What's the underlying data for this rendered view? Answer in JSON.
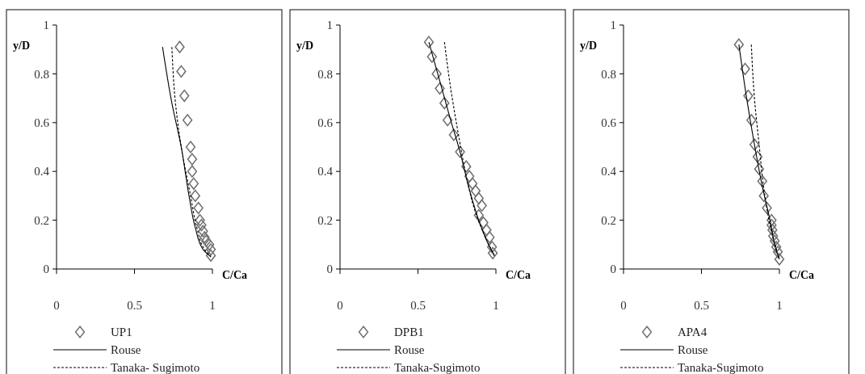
{
  "chart_data": [
    {
      "type": "scatter",
      "xlabel": "C/Ca",
      "ylabel": "y/D",
      "xlim": [
        0,
        1
      ],
      "ylim": [
        0,
        1
      ],
      "xticks": [
        0,
        0.5,
        1
      ],
      "yticks": [
        0,
        0.2,
        0.4,
        0.6,
        0.8,
        1
      ],
      "grid": false,
      "legend": "bottom",
      "series": [
        {
          "name": "UP1",
          "marker": "diamond",
          "color": "#707070",
          "x": [
            0.79,
            0.8,
            0.82,
            0.84,
            0.86,
            0.87,
            0.87,
            0.88,
            0.89,
            0.91,
            0.92,
            0.93,
            0.94,
            0.95,
            0.96,
            0.98,
            0.99,
            0.99
          ],
          "values": [
            0.91,
            0.81,
            0.71,
            0.61,
            0.5,
            0.45,
            0.4,
            0.35,
            0.3,
            0.25,
            0.2,
            0.18,
            0.155,
            0.13,
            0.115,
            0.1,
            0.08,
            0.055
          ]
        },
        {
          "name": "Rouse",
          "type": "line",
          "line_style": "solid",
          "color": "#000000",
          "x": [
            0.68,
            0.74,
            0.8,
            0.85,
            0.89,
            0.94,
            0.99
          ],
          "values": [
            0.91,
            0.68,
            0.5,
            0.3,
            0.17,
            0.08,
            0.05
          ]
        },
        {
          "name": "Tanaka- Sugimoto",
          "type": "line",
          "line_style": "dashed",
          "color": "#000000",
          "x": [
            0.74,
            0.76,
            0.8,
            0.86,
            0.9,
            0.95,
            0.99
          ],
          "values": [
            0.91,
            0.7,
            0.5,
            0.3,
            0.17,
            0.08,
            0.05
          ]
        }
      ]
    },
    {
      "type": "scatter",
      "xlabel": "C/Ca",
      "ylabel": "y/D",
      "xlim": [
        0,
        1
      ],
      "ylim": [
        0,
        1
      ],
      "xticks": [
        0,
        0.5,
        1
      ],
      "yticks": [
        0,
        0.2,
        0.4,
        0.6,
        0.8,
        1
      ],
      "grid": false,
      "legend": "bottom",
      "series": [
        {
          "name": "DPB1",
          "marker": "diamond",
          "color": "#707070",
          "x": [
            0.57,
            0.59,
            0.62,
            0.64,
            0.67,
            0.69,
            0.73,
            0.77,
            0.81,
            0.83,
            0.85,
            0.87,
            0.89,
            0.91,
            0.89,
            0.92,
            0.94,
            0.96,
            0.975,
            0.98
          ],
          "values": [
            0.93,
            0.87,
            0.8,
            0.74,
            0.68,
            0.61,
            0.55,
            0.48,
            0.42,
            0.38,
            0.35,
            0.32,
            0.29,
            0.26,
            0.22,
            0.19,
            0.16,
            0.13,
            0.09,
            0.065
          ]
        },
        {
          "name": "Rouse",
          "type": "line",
          "line_style": "solid",
          "color": "#000000",
          "x": [
            0.57,
            0.64,
            0.71,
            0.77,
            0.82,
            0.89,
            0.96,
            0.99
          ],
          "values": [
            0.93,
            0.77,
            0.61,
            0.48,
            0.35,
            0.2,
            0.09,
            0.055
          ]
        },
        {
          "name": "Tanaka-Sugimoto",
          "type": "line",
          "line_style": "dashed",
          "color": "#000000",
          "x": [
            0.67,
            0.71,
            0.76,
            0.81,
            0.87,
            0.94,
            0.99
          ],
          "values": [
            0.93,
            0.74,
            0.55,
            0.38,
            0.23,
            0.12,
            0.055
          ]
        }
      ]
    },
    {
      "type": "scatter",
      "xlabel": "C/Ca",
      "ylabel": "y/D",
      "xlim": [
        0,
        1
      ],
      "ylim": [
        0,
        1
      ],
      "xticks": [
        0,
        0.5,
        1
      ],
      "yticks": [
        0,
        0.2,
        0.4,
        0.6,
        0.8,
        1
      ],
      "grid": false,
      "legend": "bottom",
      "series": [
        {
          "name": "APA4",
          "marker": "diamond",
          "color": "#707070",
          "x": [
            0.74,
            0.78,
            0.8,
            0.82,
            0.84,
            0.86,
            0.87,
            0.89,
            0.9,
            0.92,
            0.95,
            0.95,
            0.955,
            0.96,
            0.97,
            0.98,
            0.99,
            1.0
          ],
          "values": [
            0.92,
            0.82,
            0.71,
            0.61,
            0.51,
            0.46,
            0.41,
            0.36,
            0.3,
            0.25,
            0.2,
            0.18,
            0.16,
            0.135,
            0.115,
            0.09,
            0.07,
            0.04
          ]
        },
        {
          "name": "Rouse",
          "type": "line",
          "line_style": "solid",
          "color": "#000000",
          "x": [
            0.74,
            0.79,
            0.84,
            0.89,
            0.94,
            0.98,
            1.0
          ],
          "values": [
            0.92,
            0.7,
            0.51,
            0.34,
            0.2,
            0.075,
            0.04
          ]
        },
        {
          "name": "Tanaka-Sugimoto",
          "type": "line",
          "line_style": "dashed",
          "color": "#000000",
          "x": [
            0.82,
            0.84,
            0.87,
            0.9,
            0.94,
            1.0
          ],
          "values": [
            0.92,
            0.7,
            0.51,
            0.33,
            0.18,
            0.04
          ]
        }
      ]
    }
  ]
}
